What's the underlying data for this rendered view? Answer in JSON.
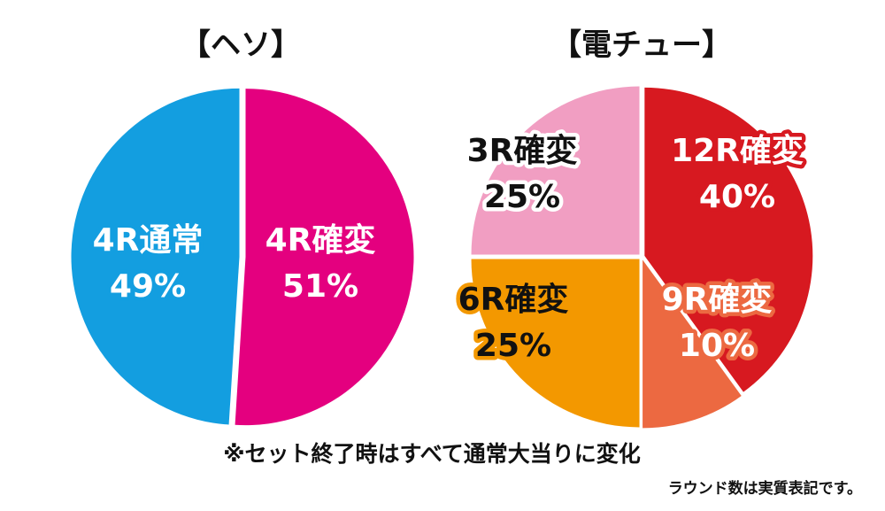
{
  "chart_data": [
    {
      "type": "pie",
      "title": "【ヘソ】",
      "start_angle_deg": 0,
      "direction": "clockwise",
      "slices": [
        {
          "label": "4R確変",
          "value": 51,
          "value_label": "51%",
          "color": "#e4007f",
          "text_color": "#ffffff",
          "outline_color": "#e4007f"
        },
        {
          "label": "4R通常",
          "value": 49,
          "value_label": "49%",
          "color": "#139ee0",
          "text_color": "#ffffff",
          "outline_color": "#139ee0"
        }
      ]
    },
    {
      "type": "pie",
      "title": "【電チュー】",
      "start_angle_deg": 0,
      "direction": "clockwise",
      "slices": [
        {
          "label": "12R確変",
          "value": 40,
          "value_label": "40%",
          "color": "#d71920",
          "text_color": "#ffffff",
          "outline_color": "#d71920"
        },
        {
          "label": "9R確変",
          "value": 10,
          "value_label": "10%",
          "color": "#ec6941",
          "text_color": "#ffffff",
          "outline_color": "#ec6941"
        },
        {
          "label": "6R確変",
          "value": 25,
          "value_label": "25%",
          "color": "#f39800",
          "text_color": "#111111",
          "outline_color": "#f39800"
        },
        {
          "label": "3R確変",
          "value": 25,
          "value_label": "25%",
          "color": "#f19ec2",
          "text_color": "#111111",
          "outline_color": "#ffffff"
        }
      ]
    }
  ],
  "footer": {
    "note": "※セット終了時はすべて通常大当りに変化",
    "small_note": "ラウンド数は実質表記です。"
  }
}
